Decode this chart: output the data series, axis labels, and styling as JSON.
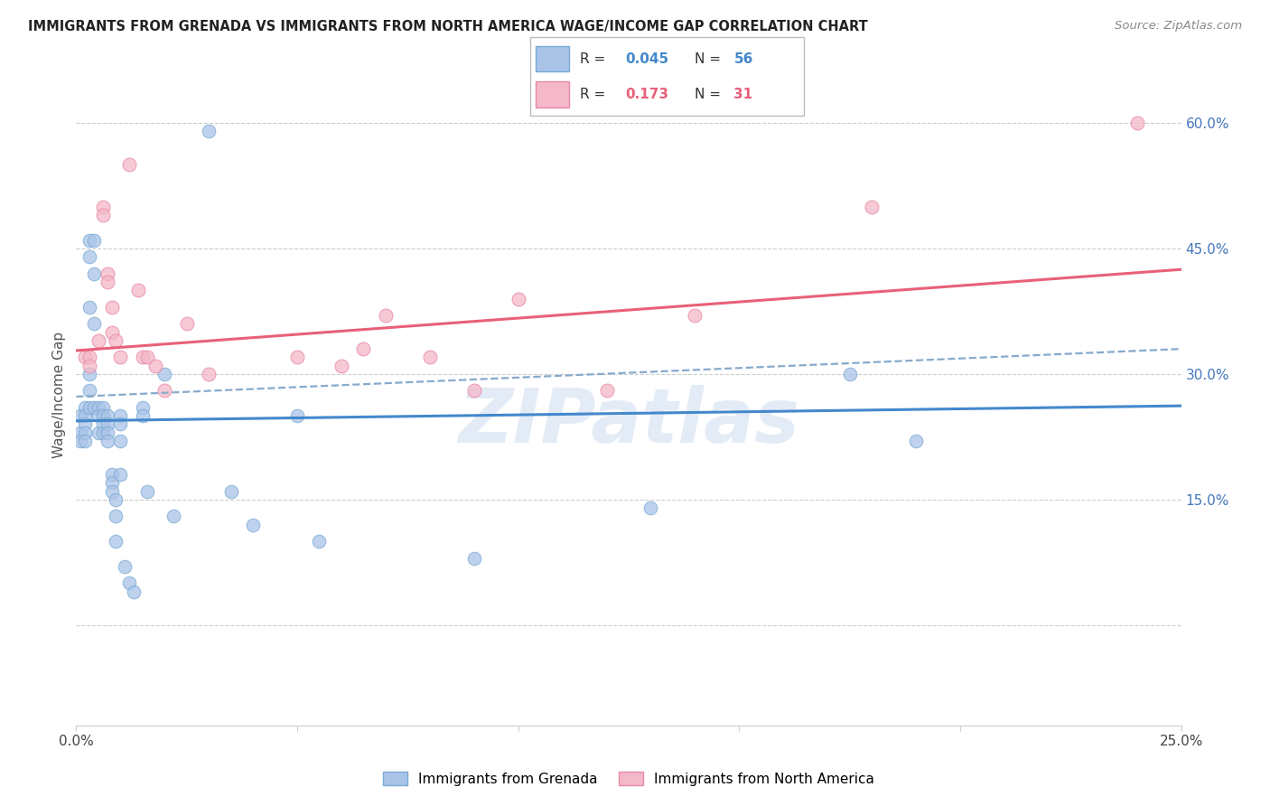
{
  "title": "IMMIGRANTS FROM GRENADA VS IMMIGRANTS FROM NORTH AMERICA WAGE/INCOME GAP CORRELATION CHART",
  "source": "Source: ZipAtlas.com",
  "ylabel": "Wage/Income Gap",
  "watermark": "ZIPatlas",
  "legend_blue_r": "R = 0.045",
  "legend_blue_n": "N = 56",
  "legend_pink_r": "R =  0.173",
  "legend_pink_n": "N = 31",
  "x_min": 0.0,
  "x_max": 0.25,
  "y_min": -0.12,
  "y_max": 0.67,
  "x_ticks": [
    0.0,
    0.05,
    0.1,
    0.15,
    0.2,
    0.25
  ],
  "x_tick_labels": [
    "0.0%",
    "",
    "",
    "",
    "",
    "25.0%"
  ],
  "y_ticks_right": [
    0.0,
    0.15,
    0.3,
    0.45,
    0.6
  ],
  "y_tick_labels_right": [
    "",
    "15.0%",
    "30.0%",
    "45.0%",
    "60.0%"
  ],
  "grid_color": "#cccccc",
  "blue_color": "#aac4e8",
  "pink_color": "#f4b8c8",
  "blue_edge_color": "#7aaad4",
  "pink_edge_color": "#e889a8",
  "blue_line_color": "#4488cc",
  "pink_line_color": "#e8607a",
  "dashed_line_color": "#88aacc",
  "title_color": "#222222",
  "right_label_color": "#4477bb",
  "blue_scatter_x": [
    0.001,
    0.001,
    0.001,
    0.002,
    0.002,
    0.002,
    0.002,
    0.002,
    0.003,
    0.003,
    0.003,
    0.003,
    0.003,
    0.003,
    0.004,
    0.004,
    0.004,
    0.004,
    0.005,
    0.005,
    0.005,
    0.006,
    0.006,
    0.006,
    0.006,
    0.007,
    0.007,
    0.007,
    0.007,
    0.008,
    0.008,
    0.008,
    0.009,
    0.009,
    0.009,
    0.01,
    0.01,
    0.01,
    0.01,
    0.011,
    0.012,
    0.013,
    0.015,
    0.015,
    0.016,
    0.02,
    0.022,
    0.03,
    0.035,
    0.04,
    0.05,
    0.055,
    0.09,
    0.13,
    0.175,
    0.19
  ],
  "blue_scatter_y": [
    0.25,
    0.23,
    0.22,
    0.26,
    0.25,
    0.24,
    0.23,
    0.22,
    0.46,
    0.44,
    0.38,
    0.3,
    0.28,
    0.26,
    0.46,
    0.42,
    0.36,
    0.26,
    0.26,
    0.25,
    0.23,
    0.26,
    0.25,
    0.24,
    0.23,
    0.25,
    0.24,
    0.23,
    0.22,
    0.18,
    0.17,
    0.16,
    0.15,
    0.13,
    0.1,
    0.25,
    0.24,
    0.22,
    0.18,
    0.07,
    0.05,
    0.04,
    0.26,
    0.25,
    0.16,
    0.3,
    0.13,
    0.59,
    0.16,
    0.12,
    0.25,
    0.1,
    0.08,
    0.14,
    0.3,
    0.22
  ],
  "pink_scatter_x": [
    0.002,
    0.003,
    0.003,
    0.005,
    0.006,
    0.006,
    0.007,
    0.007,
    0.008,
    0.008,
    0.009,
    0.01,
    0.012,
    0.014,
    0.015,
    0.016,
    0.018,
    0.02,
    0.025,
    0.03,
    0.05,
    0.06,
    0.065,
    0.07,
    0.08,
    0.09,
    0.1,
    0.12,
    0.14,
    0.18,
    0.24
  ],
  "pink_scatter_y": [
    0.32,
    0.32,
    0.31,
    0.34,
    0.5,
    0.49,
    0.42,
    0.41,
    0.38,
    0.35,
    0.34,
    0.32,
    0.55,
    0.4,
    0.32,
    0.32,
    0.31,
    0.28,
    0.36,
    0.3,
    0.32,
    0.31,
    0.33,
    0.37,
    0.32,
    0.28,
    0.39,
    0.28,
    0.37,
    0.5,
    0.6
  ],
  "blue_trend_x": [
    0.0,
    0.25
  ],
  "blue_trend_y": [
    0.244,
    0.262
  ],
  "pink_trend_x": [
    0.0,
    0.25
  ],
  "pink_trend_y": [
    0.328,
    0.425
  ],
  "dashed_trend_x": [
    0.0,
    0.25
  ],
  "dashed_trend_y": [
    0.273,
    0.33
  ]
}
